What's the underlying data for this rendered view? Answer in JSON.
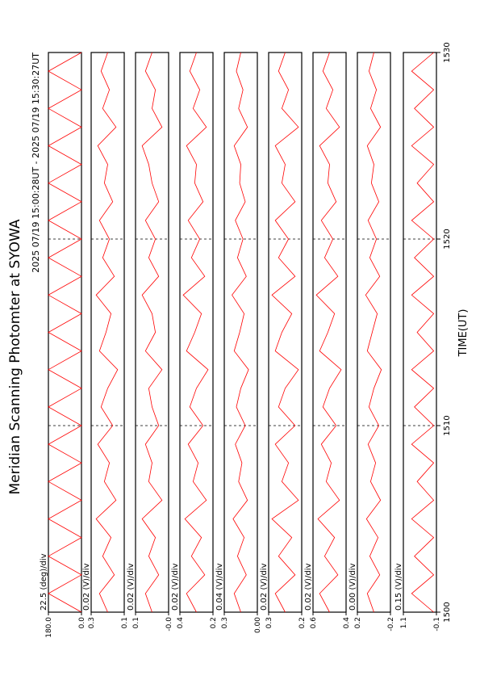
{
  "chart_data": {
    "type": "line",
    "title": "Meridian Scanning Photomter at SYOWA",
    "subtitle": "2025 07/19 15:00:28UT - 2025 07/19 15:30:27UT",
    "xlabel": "TIME(UT)",
    "color": "#ff0000",
    "grid": true,
    "x": [
      1500,
      1501,
      1502,
      1503,
      1504,
      1505,
      1506,
      1507,
      1508,
      1509,
      1510,
      1511,
      1512,
      1513,
      1514,
      1515,
      1516,
      1517,
      1518,
      1519,
      1520,
      1521,
      1522,
      1523,
      1524,
      1525,
      1526,
      1527,
      1528,
      1529,
      1530
    ],
    "xlim": [
      1500,
      1530
    ],
    "xticks": [
      1500,
      1510,
      1520,
      1530
    ],
    "panels": [
      {
        "label": "22.5 (deg)/div",
        "ylim": [
          0,
          180
        ],
        "yticks": [
          {
            "value": 0,
            "label": "0.0"
          },
          {
            "value": 180,
            "label": "180.0"
          }
        ],
        "values": [
          0,
          180,
          0,
          180,
          0,
          180,
          0,
          180,
          0,
          180,
          0,
          180,
          0,
          180,
          0,
          180,
          0,
          180,
          0,
          180,
          0,
          180,
          0,
          180,
          0,
          180,
          0,
          180,
          0,
          180,
          0
        ]
      },
      {
        "label": "0.02 (V)/div",
        "ylim": [
          0.1,
          0.3
        ],
        "yticks": [
          0.1,
          0.3
        ],
        "values": [
          0.2,
          0.25,
          0.16,
          0.23,
          0.18,
          0.27,
          0.15,
          0.22,
          0.19,
          0.26,
          0.17,
          0.24,
          0.2,
          0.14,
          0.25,
          0.21,
          0.18,
          0.27,
          0.16,
          0.23,
          0.19,
          0.25,
          0.17,
          0.22,
          0.2,
          0.26,
          0.15,
          0.23,
          0.19,
          0.24,
          0.2
        ]
      },
      {
        "label": "0.02 (V)/div",
        "ylim": [
          0,
          0.1
        ],
        "yticks": [
          {
            "value": 0,
            "label": "-0.0"
          },
          0.1
        ],
        "values": [
          0.05,
          0.07,
          0.03,
          0.06,
          0.04,
          0.08,
          0.02,
          0.06,
          0.05,
          0.07,
          0.03,
          0.05,
          0.06,
          0.02,
          0.07,
          0.04,
          0.05,
          0.08,
          0.03,
          0.06,
          0.04,
          0.07,
          0.03,
          0.05,
          0.06,
          0.08,
          0.02,
          0.05,
          0.04,
          0.07,
          0.05
        ]
      },
      {
        "label": "0.02 (V)/div",
        "ylim": [
          0.2,
          0.4
        ],
        "yticks": [
          0.2,
          0.4
        ],
        "values": [
          0.3,
          0.36,
          0.25,
          0.33,
          0.27,
          0.37,
          0.24,
          0.32,
          0.29,
          0.35,
          0.26,
          0.34,
          0.3,
          0.23,
          0.36,
          0.31,
          0.27,
          0.38,
          0.25,
          0.33,
          0.28,
          0.35,
          0.26,
          0.31,
          0.3,
          0.36,
          0.24,
          0.32,
          0.28,
          0.34,
          0.3
        ]
      },
      {
        "label": "0.04 (V)/div",
        "ylim": [
          0,
          0.3
        ],
        "yticks": [
          {
            "value": 0,
            "label": "0.00"
          },
          0.3
        ],
        "values": [
          0.15,
          0.21,
          0.1,
          0.18,
          0.12,
          0.22,
          0.09,
          0.17,
          0.14,
          0.2,
          0.11,
          0.19,
          0.15,
          0.08,
          0.21,
          0.16,
          0.12,
          0.23,
          0.1,
          0.18,
          0.13,
          0.2,
          0.11,
          0.16,
          0.15,
          0.21,
          0.09,
          0.17,
          0.13,
          0.19,
          0.15
        ]
      },
      {
        "label": "0.02 (V)/div",
        "ylim": [
          0.2,
          0.3
        ],
        "yticks": [
          0.2,
          0.3
        ],
        "values": [
          0.25,
          0.28,
          0.22,
          0.27,
          0.23,
          0.29,
          0.21,
          0.26,
          0.24,
          0.28,
          0.22,
          0.27,
          0.25,
          0.21,
          0.28,
          0.26,
          0.23,
          0.29,
          0.22,
          0.27,
          0.24,
          0.28,
          0.22,
          0.26,
          0.25,
          0.28,
          0.21,
          0.26,
          0.24,
          0.27,
          0.25
        ]
      },
      {
        "label": "0.02 (V)/div",
        "ylim": [
          0.4,
          0.6
        ],
        "yticks": [
          0.4,
          0.6
        ],
        "values": [
          0.5,
          0.56,
          0.45,
          0.53,
          0.47,
          0.57,
          0.44,
          0.52,
          0.49,
          0.55,
          0.46,
          0.54,
          0.5,
          0.43,
          0.56,
          0.51,
          0.47,
          0.58,
          0.45,
          0.53,
          0.48,
          0.55,
          0.46,
          0.51,
          0.5,
          0.56,
          0.44,
          0.52,
          0.48,
          0.54,
          0.5
        ]
      },
      {
        "label": "0.00 (V)/div",
        "ylim": [
          -0.2,
          0.2
        ],
        "yticks": [
          -0.2,
          0.2
        ],
        "values": [
          0,
          0.08,
          -0.07,
          0.05,
          -0.05,
          0.09,
          -0.08,
          0.04,
          -0.02,
          0.07,
          -0.06,
          0.06,
          0,
          -0.09,
          0.08,
          0.02,
          -0.04,
          0.1,
          -0.07,
          0.05,
          -0.03,
          0.07,
          -0.06,
          0.03,
          0,
          0.08,
          -0.08,
          0.04,
          -0.03,
          0.06,
          0
        ]
      },
      {
        "label": "0.15 (V)/div",
        "ylim": [
          -0.1,
          1.1
        ],
        "yticks": [
          -0.1,
          1.1
        ],
        "values": [
          0,
          0.8,
          0,
          0.7,
          0,
          0.8,
          0,
          0.6,
          0,
          0.8,
          0,
          0.7,
          0,
          0.8,
          0,
          0.6,
          0,
          0.8,
          0,
          0.7,
          0,
          0.8,
          0,
          0.6,
          0,
          0.8,
          0,
          0.7,
          0,
          0.8,
          0
        ]
      }
    ]
  }
}
